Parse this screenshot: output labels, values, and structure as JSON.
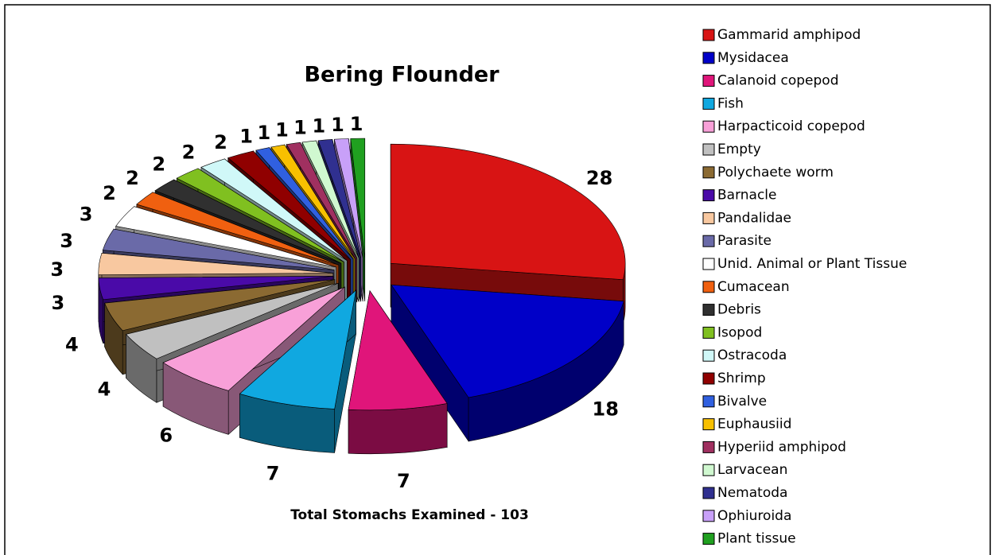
{
  "chart_data": {
    "type": "pie",
    "title": "Bering Flounder",
    "subtitle": "Total Stomachs Examined - 103",
    "categories": [
      "Gammarid amphipod",
      "Mysidacea",
      "Calanoid copepod",
      "Fish",
      "Harpacticoid copepod",
      "Empty",
      "Polychaete worm",
      "Barnacle",
      "Pandalidae",
      "Parasite",
      "Unid. Animal or Plant Tissue",
      "Cumacean",
      "Debris",
      "Isopod",
      "Ostracoda",
      "Shrimp",
      "Bivalve",
      "Euphausiid",
      "Hyperiid amphipod",
      "Larvacean",
      "Nematoda",
      "Ophiuroida",
      "Plant tissue"
    ],
    "values": [
      28,
      18,
      7,
      7,
      6,
      4,
      4,
      3,
      3,
      3,
      3,
      2,
      2,
      2,
      2,
      2,
      1,
      1,
      1,
      1,
      1,
      1,
      1
    ],
    "colors": [
      "#d81414",
      "#0000c8",
      "#e0157a",
      "#10a8e0",
      "#f8a0d8",
      "#c0c0c0",
      "#8b6a32",
      "#4a0aa8",
      "#f8c8a0",
      "#6a6aa8",
      "#ffffff",
      "#f06010",
      "#303030",
      "#80c020",
      "#d0f8f8",
      "#900000",
      "#3060e0",
      "#f8c000",
      "#a03060",
      "#d0f8d0",
      "#303090",
      "#c8a0f8",
      "#20a020"
    ],
    "legend": "right"
  }
}
